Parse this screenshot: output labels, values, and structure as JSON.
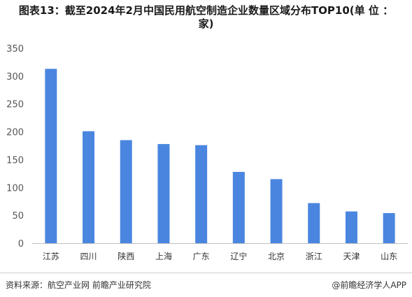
{
  "title_line1": "图表13：截至2024年2月中国民用航空制造企业数量区域分布TOP10(单 位 ：",
  "title_line2": "家)",
  "source": "资料来源：航空产业网 前瞻产业研究院",
  "brand": "@前瞻经济学人APP",
  "chart_data": {
    "type": "bar",
    "categories": [
      "江苏",
      "四川",
      "陕西",
      "上海",
      "广东",
      "辽宁",
      "北京",
      "浙江",
      "天津",
      "山东"
    ],
    "values": [
      313,
      201,
      185,
      178,
      176,
      128,
      115,
      72,
      57,
      54
    ],
    "ylim": [
      0,
      350
    ],
    "yticks": [
      0,
      50,
      100,
      150,
      200,
      250,
      300,
      350
    ],
    "bar_color": "#4A86E0",
    "grid": false
  }
}
